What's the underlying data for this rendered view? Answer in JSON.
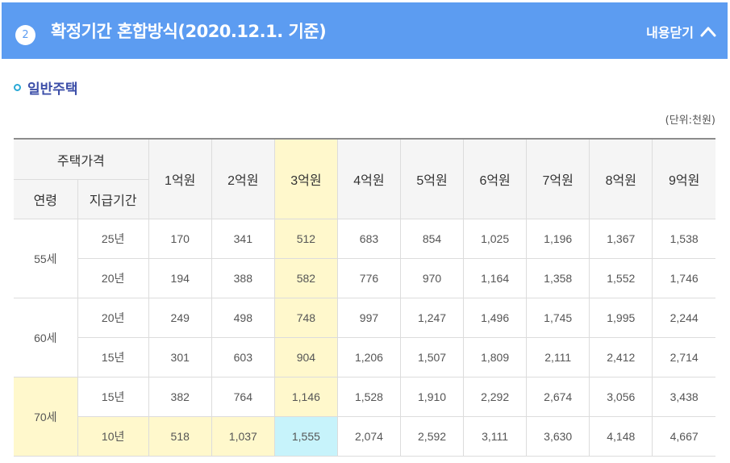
{
  "header": {
    "step_number": "2",
    "title": "확정기간 혼합방식(2020.12.1. 기준)",
    "toggle_label": "내용닫기",
    "toggle_icon": "chevron-up-icon",
    "background_color": "#5c9cf1"
  },
  "section": {
    "title": "일반주택",
    "unit_note": "(단위:천원)"
  },
  "table": {
    "header": {
      "group_label": "주택가격",
      "age_label": "연령",
      "period_label": "지급기간",
      "price_columns": [
        "1억원",
        "2억원",
        "3억원",
        "4억원",
        "5억원",
        "6억원",
        "7억원",
        "8억원",
        "9억원"
      ]
    },
    "groups": [
      {
        "age": "55세",
        "rows": [
          {
            "period": "25년",
            "values": [
              "170",
              "341",
              "512",
              "683",
              "854",
              "1,025",
              "1,196",
              "1,367",
              "1,538"
            ]
          },
          {
            "period": "20년",
            "values": [
              "194",
              "388",
              "582",
              "776",
              "970",
              "1,164",
              "1,358",
              "1,552",
              "1,746"
            ]
          }
        ]
      },
      {
        "age": "60세",
        "rows": [
          {
            "period": "20년",
            "values": [
              "249",
              "498",
              "748",
              "997",
              "1,247",
              "1,496",
              "1,745",
              "1,995",
              "2,244"
            ]
          },
          {
            "period": "15년",
            "values": [
              "301",
              "603",
              "904",
              "1,206",
              "1,507",
              "1,809",
              "2,111",
              "2,412",
              "2,714"
            ]
          }
        ]
      },
      {
        "age": "70세",
        "rows": [
          {
            "period": "15년",
            "values": [
              "382",
              "764",
              "1,146",
              "1,528",
              "1,910",
              "2,292",
              "2,674",
              "3,056",
              "3,438"
            ]
          },
          {
            "period": "10년",
            "values": [
              "518",
              "1,037",
              "1,555",
              "2,074",
              "2,592",
              "3,111",
              "3,630",
              "4,148",
              "4,667"
            ]
          }
        ]
      }
    ],
    "highlight_colors": {
      "yellow": "#fff8cc",
      "cyan": "#c7f3fb"
    }
  }
}
